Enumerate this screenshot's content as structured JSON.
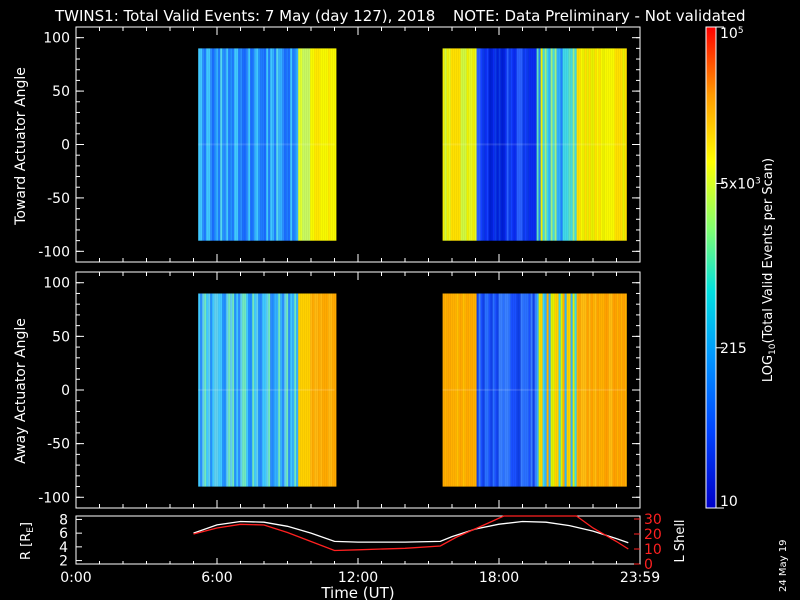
{
  "header": {
    "title": "TWINS1: Total Valid Events:  7 May (day 127), 2018",
    "note": "NOTE: Data Preliminary - Not validated"
  },
  "colors": {
    "note": "#ff2020",
    "lshell": "#ff2020",
    "radius": "#ffffff",
    "background": "#000000"
  },
  "chart_data": [
    {
      "type": "heatmap",
      "ylabel": "Toward Actuator Angle",
      "ylim": [
        -110,
        110
      ],
      "yticks": [
        "100",
        "50",
        "0",
        "-50",
        "-100"
      ],
      "ytick_values": [
        100,
        50,
        0,
        -50,
        -100
      ],
      "xlim": [
        0,
        24
      ],
      "data_blocks": [
        {
          "t_start": 5.2,
          "t_end": 11.0,
          "angle_min": -90,
          "angle_max": 90,
          "dominant": "blue-cyan, yellow after 09:30"
        },
        {
          "t_start": 15.6,
          "t_end": 23.4,
          "angle_min": -90,
          "angle_max": 90,
          "dominant": "yellow, dark blue 17:00-19:30"
        }
      ]
    },
    {
      "type": "heatmap",
      "ylabel": "Away Actuator Angle",
      "ylim": [
        -110,
        110
      ],
      "yticks": [
        "100",
        "50",
        "0",
        "-50",
        "-100"
      ],
      "ytick_values": [
        100,
        50,
        0,
        -50,
        -100
      ],
      "xlim": [
        0,
        24
      ],
      "data_blocks": [
        {
          "t_start": 5.2,
          "t_end": 11.0,
          "angle_min": -90,
          "angle_max": 90,
          "dominant": "blue-cyan, orange after 09:30"
        },
        {
          "t_start": 15.6,
          "t_end": 23.4,
          "angle_min": -90,
          "angle_max": 90,
          "dominant": "orange, dark blue 17:00-19:30"
        }
      ]
    },
    {
      "type": "line",
      "ylabel_left": "R [R",
      "ylabel_left_sub": "E",
      "ylabel_left_end": "]",
      "ylabel_right": "L Shell",
      "ylim_left": [
        1.5,
        8.5
      ],
      "yticks_left": [
        "2",
        "4",
        "6",
        "8"
      ],
      "ylim_right": [
        0,
        32
      ],
      "yticks_right": [
        "0",
        "10",
        "20",
        "30"
      ],
      "xlabel": "Time (UT)",
      "xticks": [
        "0:00",
        "6:00",
        "12:00",
        "18:00",
        "23:59"
      ],
      "xtick_values": [
        0,
        6,
        12,
        18,
        24
      ],
      "series": [
        {
          "axis": "left",
          "x": [
            5,
            6,
            7,
            8,
            9,
            10,
            11,
            12,
            14,
            15.5,
            16,
            17,
            18,
            19,
            20,
            21,
            22,
            23,
            23.5
          ],
          "y": [
            6.0,
            7.2,
            7.7,
            7.6,
            7.0,
            6.0,
            4.8,
            4.7,
            4.7,
            4.8,
            5.5,
            6.6,
            7.3,
            7.7,
            7.6,
            7.1,
            6.3,
            5.2,
            4.6
          ]
        },
        {
          "axis": "right",
          "x": [
            5,
            6,
            7,
            8,
            9,
            10,
            11,
            12,
            14,
            15.5,
            16.2,
            17.5,
            18.2,
            21.3,
            22,
            23,
            23.5
          ],
          "y": [
            20,
            24,
            26.5,
            26,
            21,
            15,
            9,
            9.5,
            10.5,
            12,
            18,
            27,
            34,
            34,
            24,
            15,
            10
          ]
        }
      ]
    },
    {
      "type": "heatmap-colorbar",
      "label": "LOG10(Total Valid Events per Scan)",
      "label_base": "LOG",
      "label_sub": "10",
      "label_rest": "(Total Valid Events per Scan)",
      "tick_labels": [
        {
          "value": 100000,
          "main": "10",
          "sup": "5"
        },
        {
          "value": 5000,
          "main": "5x10",
          "sup": "3"
        },
        {
          "value": 215,
          "main": "215",
          "sup": ""
        },
        {
          "value": 10,
          "main": "10",
          "sup": ""
        }
      ],
      "log_range": [
        1,
        5
      ]
    }
  ],
  "footer": {
    "date_stamp": "24 May 19"
  }
}
